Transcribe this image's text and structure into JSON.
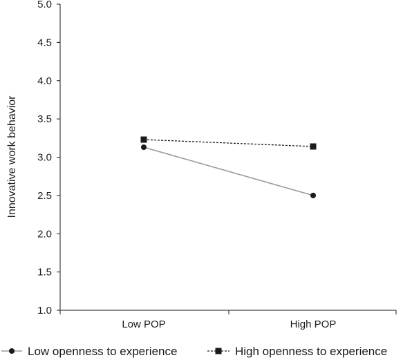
{
  "chart_data": {
    "type": "line",
    "title": "",
    "xlabel": "",
    "ylabel": "Innovative work behavior",
    "categories": [
      "Low POP",
      "High POP"
    ],
    "ylim": [
      1.0,
      5.0
    ],
    "yticks": [
      "1.0",
      "1.5",
      "2.0",
      "2.5",
      "3.0",
      "3.5",
      "4.0",
      "4.5",
      "5.0"
    ],
    "grid": false,
    "legend_position": "bottom",
    "series": [
      {
        "name": "Low openness to experience",
        "values": [
          3.13,
          2.5
        ],
        "marker": "circle",
        "line_style": "solid",
        "color": "#9a9a9a",
        "marker_color": "#1a1a1a"
      },
      {
        "name": "High openness to experience",
        "values": [
          3.23,
          3.14
        ],
        "marker": "square",
        "line_style": "dashed",
        "color": "#1a1a1a",
        "marker_color": "#1a1a1a"
      }
    ]
  }
}
